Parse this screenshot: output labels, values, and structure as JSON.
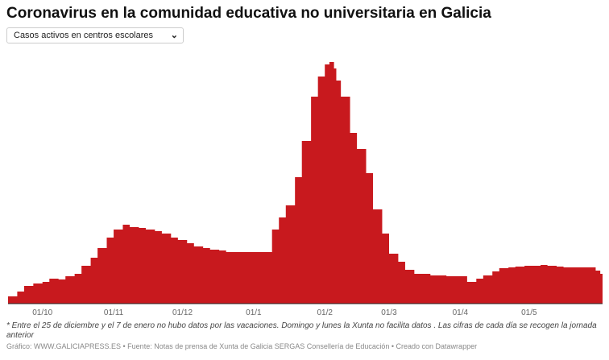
{
  "title": "Coronavirus en la comunidad educativa no universitaria en Galicia",
  "dropdown": {
    "selected": "Casos activos en centros escolares"
  },
  "note": "* Entre el 25 de diciembre y el 7 de enero no hubo datos por las vacaciones. Domingo y lunes la Xunta no facilita datos . Las cifras de cada día se recogen la jornada anterior",
  "source": "Gráfico: WWW.GALICIAPRESS.ES • Fuente: Notas de prensa de Xunta de Galicia SERGAS Consellería de Educación • Creado con Datawrapper",
  "colors": {
    "area": "#c8191e"
  },
  "chart_data": {
    "type": "area",
    "step": true,
    "title": "Coronavirus en la comunidad educativa no universitaria en Galicia",
    "xlabel": "",
    "ylabel": "",
    "y_axis_labels_shown": false,
    "grid": false,
    "xlim": [
      "2020-09-16",
      "2021-06-02"
    ],
    "ylim": [
      0,
      300
    ],
    "x_ticks": [
      {
        "date": "2020-10-01",
        "label": "01/10"
      },
      {
        "date": "2020-11-01",
        "label": "01/11"
      },
      {
        "date": "2020-12-01",
        "label": "01/12"
      },
      {
        "date": "2021-01-01",
        "label": "01/1"
      },
      {
        "date": "2021-02-01",
        "label": "01/2"
      },
      {
        "date": "2021-03-01",
        "label": "01/3"
      },
      {
        "date": "2021-04-01",
        "label": "01/4"
      },
      {
        "date": "2021-05-01",
        "label": "01/5"
      }
    ],
    "points": [
      [
        "2020-09-16",
        9
      ],
      [
        "2020-09-20",
        15
      ],
      [
        "2020-09-23",
        22
      ],
      [
        "2020-09-27",
        25
      ],
      [
        "2020-10-01",
        27
      ],
      [
        "2020-10-04",
        31
      ],
      [
        "2020-10-08",
        30
      ],
      [
        "2020-10-11",
        34
      ],
      [
        "2020-10-15",
        37
      ],
      [
        "2020-10-18",
        47
      ],
      [
        "2020-10-22",
        57
      ],
      [
        "2020-10-25",
        69
      ],
      [
        "2020-10-29",
        82
      ],
      [
        "2020-11-01",
        92
      ],
      [
        "2020-11-05",
        98
      ],
      [
        "2020-11-08",
        95
      ],
      [
        "2020-11-12",
        94
      ],
      [
        "2020-11-15",
        92
      ],
      [
        "2020-11-19",
        90
      ],
      [
        "2020-11-22",
        87
      ],
      [
        "2020-11-26",
        82
      ],
      [
        "2020-11-29",
        79
      ],
      [
        "2020-12-03",
        75
      ],
      [
        "2020-12-06",
        71
      ],
      [
        "2020-12-10",
        69
      ],
      [
        "2020-12-13",
        67
      ],
      [
        "2020-12-17",
        66
      ],
      [
        "2020-12-20",
        64
      ],
      [
        "2021-01-07",
        64
      ],
      [
        "2021-01-09",
        92
      ],
      [
        "2021-01-12",
        107
      ],
      [
        "2021-01-15",
        122
      ],
      [
        "2021-01-19",
        157
      ],
      [
        "2021-01-22",
        202
      ],
      [
        "2021-01-26",
        257
      ],
      [
        "2021-01-29",
        282
      ],
      [
        "2021-02-01",
        297
      ],
      [
        "2021-02-03",
        300
      ],
      [
        "2021-02-05",
        292
      ],
      [
        "2021-02-06",
        277
      ],
      [
        "2021-02-08",
        257
      ],
      [
        "2021-02-12",
        212
      ],
      [
        "2021-02-15",
        192
      ],
      [
        "2021-02-19",
        162
      ],
      [
        "2021-02-22",
        117
      ],
      [
        "2021-02-26",
        87
      ],
      [
        "2021-03-01",
        62
      ],
      [
        "2021-03-05",
        52
      ],
      [
        "2021-03-08",
        42
      ],
      [
        "2021-03-12",
        37
      ],
      [
        "2021-03-19",
        35
      ],
      [
        "2021-03-26",
        34
      ],
      [
        "2021-04-02",
        34
      ],
      [
        "2021-04-04",
        27
      ],
      [
        "2021-04-08",
        31
      ],
      [
        "2021-04-11",
        35
      ],
      [
        "2021-04-15",
        40
      ],
      [
        "2021-04-18",
        44
      ],
      [
        "2021-04-22",
        45
      ],
      [
        "2021-04-25",
        46
      ],
      [
        "2021-04-29",
        47
      ],
      [
        "2021-05-02",
        47
      ],
      [
        "2021-05-06",
        48
      ],
      [
        "2021-05-09",
        47
      ],
      [
        "2021-05-13",
        46
      ],
      [
        "2021-05-16",
        45
      ],
      [
        "2021-05-27",
        45
      ],
      [
        "2021-05-30",
        41
      ],
      [
        "2021-06-01",
        37
      ]
    ]
  }
}
